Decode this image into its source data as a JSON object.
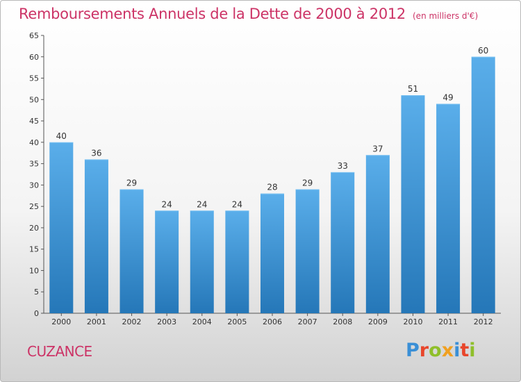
{
  "page": {
    "commune": "CUZANCE",
    "logo": [
      "P",
      "r",
      "o",
      "x",
      "i",
      "t",
      "i"
    ],
    "logo_colors": [
      "#3a8fd6",
      "#e8462b",
      "#8fbf2a",
      "#f0a020",
      "#3a8fd6",
      "#e8462b",
      "#8fbf2a"
    ]
  },
  "chart_data": {
    "type": "bar",
    "title": "Remboursements Annuels de la Dette de 2000 à 2012",
    "subtitle": "(en milliers d'€)",
    "categories": [
      "2000",
      "2001",
      "2002",
      "2003",
      "2004",
      "2005",
      "2006",
      "2007",
      "2008",
      "2009",
      "2010",
      "2011",
      "2012"
    ],
    "values": [
      40,
      36,
      29,
      24,
      24,
      24,
      28,
      29,
      33,
      37,
      51,
      49,
      60
    ],
    "ylim": [
      0,
      65
    ],
    "yticks": [
      0,
      5,
      10,
      15,
      20,
      25,
      30,
      35,
      40,
      45,
      50,
      55,
      60,
      65
    ],
    "grid": false,
    "bar_color_top": "#5aaeea",
    "bar_color_bottom": "#2577b8"
  }
}
